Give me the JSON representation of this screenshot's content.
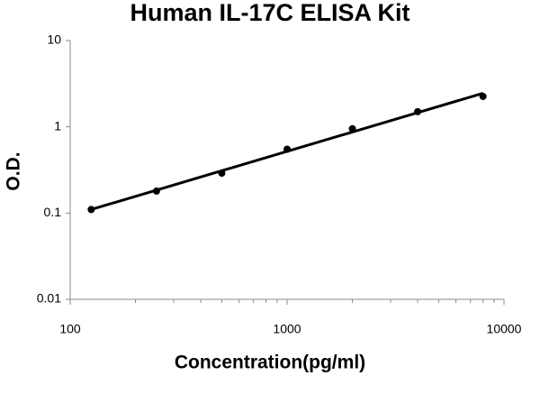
{
  "chart_data": {
    "type": "scatter",
    "title": "Human IL-17C ELISA Kit",
    "x_label": "Concentration(pg/ml)",
    "y_label": "O.D.",
    "x": [
      125,
      250,
      500,
      1000,
      2000,
      4000,
      8000
    ],
    "values": [
      0.11,
      0.18,
      0.29,
      0.55,
      0.95,
      1.5,
      2.25
    ],
    "color": "#000000",
    "trendline": {
      "x": [
        125,
        8000
      ],
      "values": [
        0.11,
        2.45
      ],
      "color": "#000000"
    },
    "xlim": [
      100,
      10000
    ],
    "ylim": [
      0.01,
      10
    ],
    "xticks": [
      100,
      1000,
      10000
    ],
    "xminorticks": [
      200,
      300,
      400,
      500,
      600,
      700,
      800,
      900,
      2000,
      3000,
      4000,
      5000,
      6000,
      7000,
      8000,
      9000
    ],
    "yticks": [
      0.01,
      0.1,
      1,
      10
    ],
    "xscale": "log",
    "yscale": "log",
    "grid": false
  }
}
